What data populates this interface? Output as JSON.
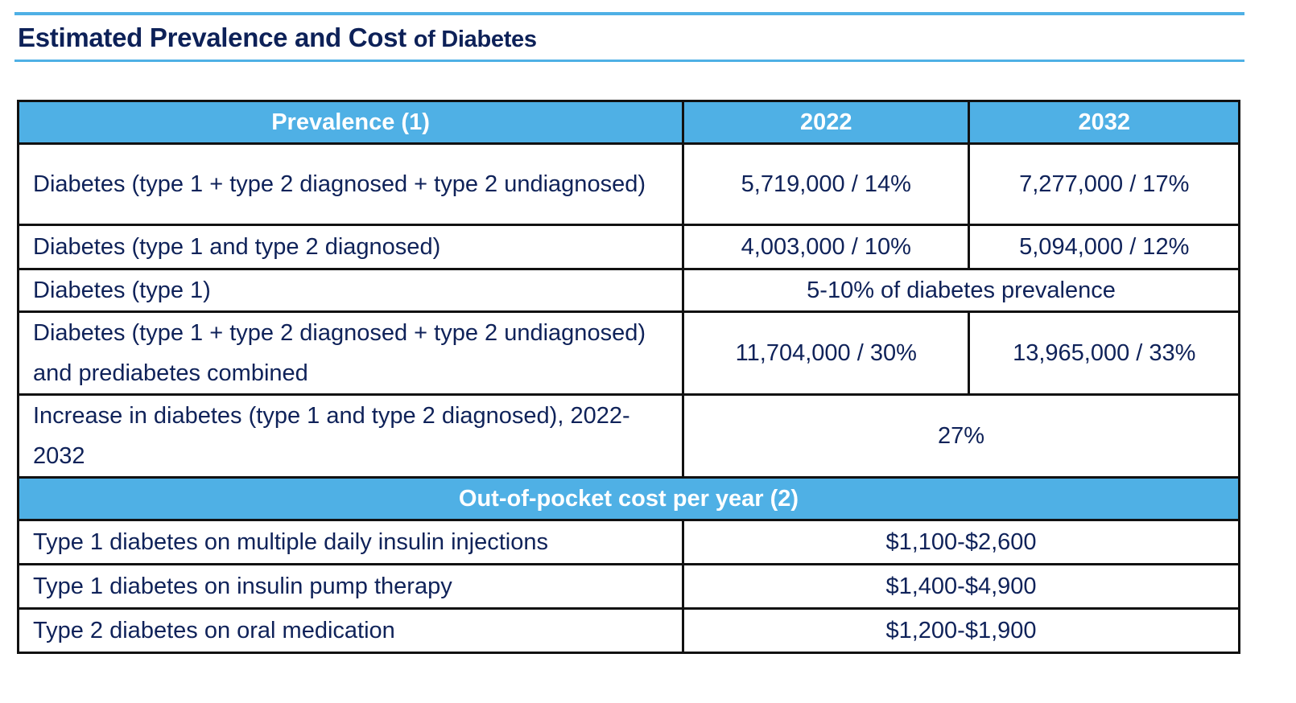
{
  "title": {
    "main": "Estimated Prevalence and Cost",
    "suffix": "of Diabetes"
  },
  "colors": {
    "accent": "#4fb0e5",
    "text": "#0f2259"
  },
  "table": {
    "headers": [
      "Prevalence (1)",
      "2022",
      "2032"
    ],
    "rows": [
      {
        "label": "Diabetes (type 1 + type 2 diagnosed + type 2 undiagnosed)",
        "v2022": "5,719,000 / 14%",
        "v2032": "7,277,000 / 17%"
      },
      {
        "label": "Diabetes (type 1 and type 2 diagnosed)",
        "v2022": "4,003,000 / 10%",
        "v2032": "5,094,000 / 12%"
      },
      {
        "label": "Diabetes (type 1)",
        "merged": "5-10% of diabetes prevalence"
      },
      {
        "label": "Diabetes (type 1 + type 2 diagnosed + type 2 undiagnosed) and prediabetes combined",
        "v2022": "11,704,000 / 30%",
        "v2032": "13,965,000 / 33%"
      },
      {
        "label": "Increase in diabetes (type 1 and type 2 diagnosed), 2022-2032",
        "merged": "27%"
      }
    ],
    "cost_header": "Out-of-pocket cost per year (2)",
    "cost_rows": [
      {
        "label": "Type 1 diabetes on multiple daily insulin injections",
        "value": "$1,100-$2,600"
      },
      {
        "label": "Type 1 diabetes on insulin pump therapy",
        "value": "$1,400-$4,900"
      },
      {
        "label": "Type 2 diabetes on oral medication",
        "value": "$1,200-$1,900"
      }
    ]
  }
}
